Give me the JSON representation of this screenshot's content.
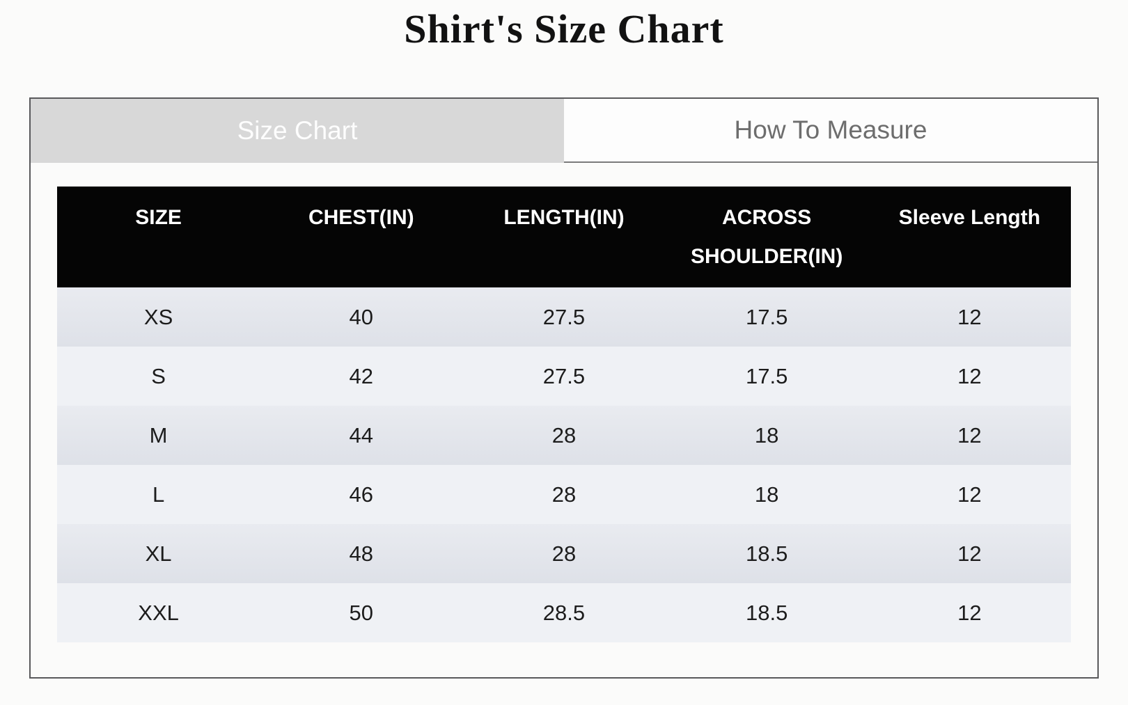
{
  "title": "Shirt's Size Chart",
  "tabs": [
    {
      "label": "Size Chart",
      "active": true
    },
    {
      "label": "How To Measure",
      "active": false
    }
  ],
  "table": {
    "columns": [
      "SIZE",
      "CHEST(IN)",
      "LENGTH(IN)",
      "ACROSS SHOULDER(IN)",
      "Sleeve Length"
    ],
    "rows": [
      [
        "XS",
        "40",
        "27.5",
        "17.5",
        "12"
      ],
      [
        "S",
        "42",
        "27.5",
        "17.5",
        "12"
      ],
      [
        "M",
        "44",
        "28",
        "18",
        "12"
      ],
      [
        "L",
        "46",
        "28",
        "18",
        "12"
      ],
      [
        "XL",
        "48",
        "28",
        "18.5",
        "12"
      ],
      [
        "XXL",
        "50",
        "28.5",
        "18.5",
        "12"
      ]
    ]
  },
  "colors": {
    "page_background": "#fbfbfa",
    "panel_border": "#59595b",
    "active_tab_bg": "#d8d8d8",
    "active_tab_text": "#fdfdfd",
    "inactive_tab_bg": "#fdfdfd",
    "inactive_tab_text": "#6d6d6d",
    "table_header_bg": "#000000",
    "table_header_text": "#ffffff",
    "row_odd_bg": "#e4e6ec",
    "row_even_bg": "#eff1f5"
  }
}
